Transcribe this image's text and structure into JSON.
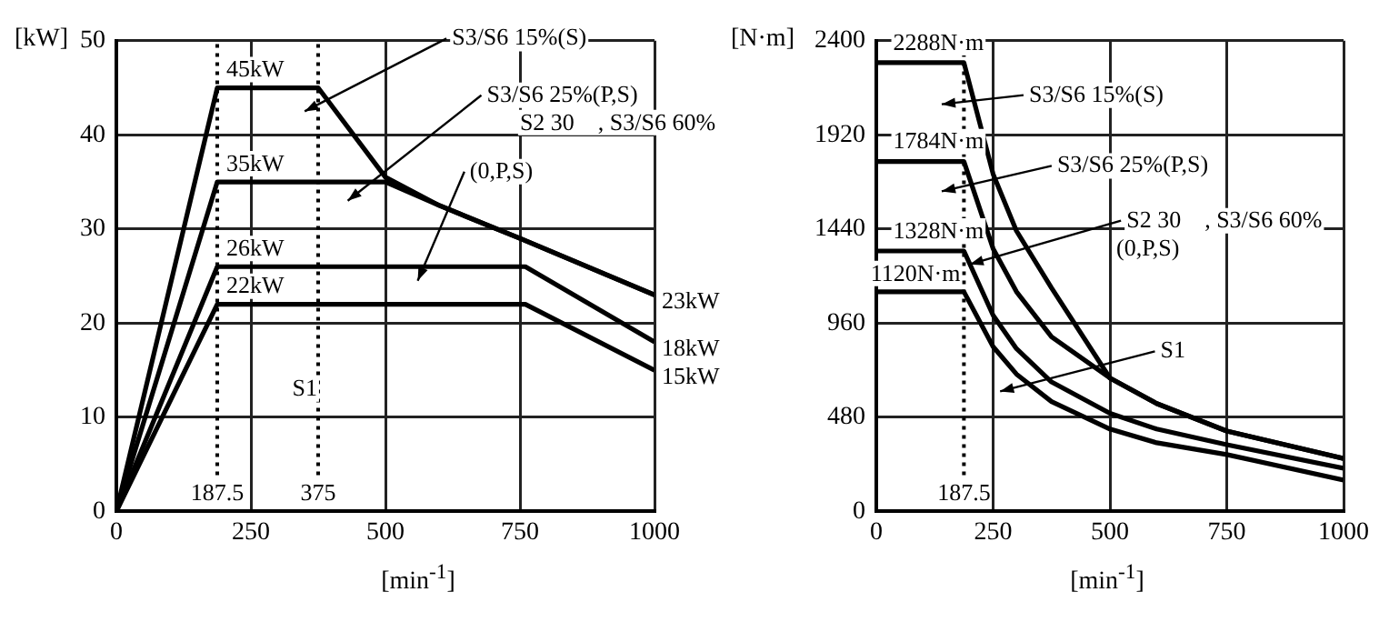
{
  "chart_data": [
    {
      "type": "line",
      "xlabel": "[min$^{-1}$]",
      "ylabel": "[kW]",
      "xlim": [
        0,
        1000
      ],
      "xticks": [
        0,
        250,
        500,
        750,
        1000
      ],
      "ylim": [
        0,
        50
      ],
      "yticks": [
        0,
        10,
        20,
        30,
        40,
        50
      ],
      "grid": true,
      "marker": "none",
      "series": [
        {
          "color": "#000000",
          "x": [
            0,
            187.5,
            375,
            500,
            600,
            750,
            1000
          ],
          "values": [
            0,
            45,
            45,
            35.5,
            32.5,
            29,
            23
          ]
        },
        {
          "color": "#000000",
          "x": [
            0,
            187.5,
            500,
            600,
            750,
            1000
          ],
          "values": [
            0,
            35,
            35,
            32.5,
            29,
            23
          ]
        },
        {
          "color": "#000000",
          "x": [
            0,
            187.5,
            760,
            1000
          ],
          "values": [
            0,
            26,
            26,
            18
          ]
        },
        {
          "color": "#000000",
          "x": [
            0,
            187.5,
            760,
            1000
          ],
          "values": [
            0,
            22,
            22,
            15
          ]
        }
      ],
      "ref_lines": [
        {
          "axis": "x",
          "value": 187.5,
          "label": "187.5",
          "line_style": "dotted"
        },
        {
          "axis": "x",
          "value": 375,
          "label": "375",
          "line_style": "dotted"
        }
      ],
      "annotations": [
        {
          "text": "45kW",
          "x": 187.5,
          "y": 45
        },
        {
          "text": "35kW",
          "x": 187.5,
          "y": 35
        },
        {
          "text": "26kW",
          "x": 187.5,
          "y": 26
        },
        {
          "text": "22kW",
          "x": 187.5,
          "y": 22
        },
        {
          "text": "23kW",
          "x": 1000,
          "y": 23
        },
        {
          "text": "18kW",
          "x": 1000,
          "y": 18
        },
        {
          "text": "15kW",
          "x": 1000,
          "y": 15
        },
        "S3/S6 15%(S)",
        "S3/S6 25%(P,S)",
        "S2 30　, S3/S6 60%",
        "(0,P,S)",
        "S1"
      ]
    },
    {
      "type": "line",
      "xlabel": "[min$^{-1}$]",
      "ylabel": "[N·m]",
      "xlim": [
        0,
        1000
      ],
      "xticks": [
        0,
        250,
        500,
        750,
        1000
      ],
      "ylim": [
        0,
        2400
      ],
      "yticks": [
        0,
        480,
        960,
        1440,
        1920,
        2400
      ],
      "grid": true,
      "marker": "none",
      "series": [
        {
          "color": "#000000",
          "x": [
            0,
            187.5,
            250,
            300,
            375,
            500,
            600,
            750,
            1000
          ],
          "values": [
            2288,
            2288,
            1720,
            1430,
            1140,
            680,
            550,
            410,
            270
          ]
        },
        {
          "color": "#000000",
          "x": [
            0,
            187.5,
            250,
            300,
            375,
            500,
            600,
            750,
            1000
          ],
          "values": [
            1784,
            1784,
            1340,
            1120,
            890,
            680,
            550,
            410,
            270
          ]
        },
        {
          "color": "#000000",
          "x": [
            0,
            187.5,
            250,
            300,
            375,
            500,
            600,
            750,
            1000
          ],
          "values": [
            1328,
            1328,
            1000,
            830,
            660,
            500,
            420,
            340,
            220
          ]
        },
        {
          "color": "#000000",
          "x": [
            0,
            187.5,
            250,
            300,
            375,
            500,
            600,
            750,
            1000
          ],
          "values": [
            1120,
            1120,
            840,
            700,
            560,
            420,
            350,
            290,
            160
          ]
        }
      ],
      "ref_lines": [
        {
          "axis": "x",
          "value": 187.5,
          "label": "187.5",
          "line_style": "dotted"
        }
      ],
      "annotations": [
        {
          "text": "2288N·m",
          "x": 187.5,
          "y": 2288
        },
        {
          "text": "1784N·m",
          "x": 187.5,
          "y": 1784
        },
        {
          "text": "1328N·m",
          "x": 187.5,
          "y": 1328
        },
        {
          "text": "1120N·m",
          "x": 187.5,
          "y": 1120
        },
        "S3/S6 15%(S)",
        "S3/S6 25%(P,S)",
        {
          "text": "S2 30　, S3/S6 60%",
          "x": 200,
          "y": 1260
        },
        "(0,P,S)",
        "S1"
      ]
    }
  ]
}
